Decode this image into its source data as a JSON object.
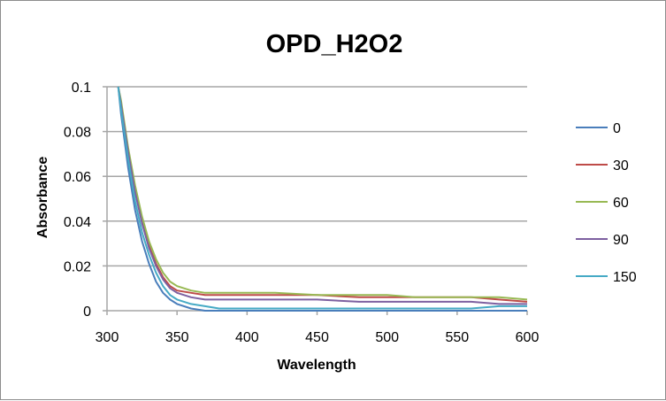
{
  "chart_data": {
    "type": "line",
    "title": "OPD_H2O2",
    "xlabel": "Wavelength",
    "ylabel": "Absorbance",
    "xlim": [
      300,
      600
    ],
    "ylim": [
      0,
      0.1
    ],
    "xticks": [
      "300",
      "350",
      "400",
      "450",
      "500",
      "550",
      "600"
    ],
    "yticks": [
      "0",
      "0.02",
      "0.04",
      "0.06",
      "0.08",
      "0.1"
    ],
    "grid": "horizontal",
    "legend_position": "right",
    "x": [
      308,
      310,
      315,
      320,
      325,
      330,
      335,
      340,
      345,
      350,
      360,
      370,
      380,
      400,
      420,
      450,
      480,
      500,
      520,
      540,
      560,
      580,
      600
    ],
    "series": [
      {
        "name": "0",
        "color": "#4a7ebb",
        "values": [
          0.1,
          0.088,
          0.064,
          0.045,
          0.031,
          0.021,
          0.013,
          0.008,
          0.005,
          0.003,
          0.001,
          0,
          0,
          0,
          0,
          0,
          0,
          0,
          0,
          0,
          0,
          0,
          0
        ]
      },
      {
        "name": "30",
        "color": "#be4b48",
        "values": [
          0.1,
          0.093,
          0.072,
          0.054,
          0.04,
          0.029,
          0.021,
          0.015,
          0.011,
          0.009,
          0.008,
          0.007,
          0.007,
          0.007,
          0.007,
          0.007,
          0.006,
          0.006,
          0.006,
          0.006,
          0.006,
          0.005,
          0.004
        ]
      },
      {
        "name": "60",
        "color": "#98b954",
        "values": [
          0.1,
          0.094,
          0.073,
          0.056,
          0.042,
          0.031,
          0.023,
          0.017,
          0.013,
          0.011,
          0.009,
          0.008,
          0.008,
          0.008,
          0.008,
          0.007,
          0.007,
          0.007,
          0.006,
          0.006,
          0.006,
          0.006,
          0.005
        ]
      },
      {
        "name": "90",
        "color": "#7d60a0",
        "values": [
          0.1,
          0.092,
          0.071,
          0.053,
          0.039,
          0.028,
          0.02,
          0.014,
          0.01,
          0.008,
          0.006,
          0.005,
          0.005,
          0.005,
          0.005,
          0.005,
          0.004,
          0.004,
          0.004,
          0.004,
          0.004,
          0.003,
          0.003
        ]
      },
      {
        "name": "150",
        "color": "#46aac5",
        "values": [
          0.1,
          0.09,
          0.068,
          0.049,
          0.035,
          0.025,
          0.017,
          0.011,
          0.007,
          0.005,
          0.003,
          0.002,
          0.001,
          0.001,
          0.001,
          0.001,
          0.001,
          0.001,
          0.001,
          0.001,
          0.001,
          0.002,
          0.002
        ]
      }
    ]
  }
}
